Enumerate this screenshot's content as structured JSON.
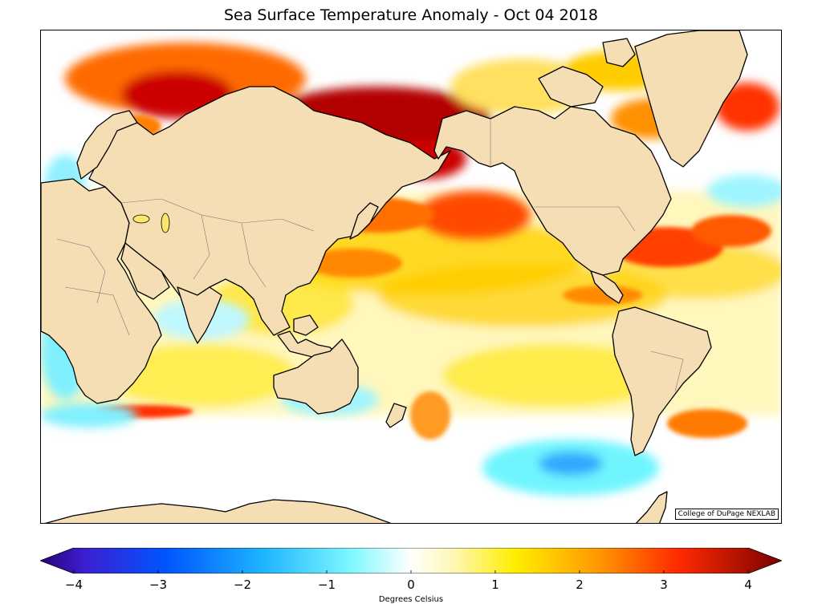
{
  "title": "Sea Surface Temperature Anomaly - Oct 04 2018",
  "credit": "College of DuPage NEXLAB",
  "colorbar": {
    "unit": "Degrees Celsius",
    "min": -4,
    "max": 4,
    "ticks": [
      "−4",
      "−3",
      "−2",
      "−1",
      "0",
      "1",
      "2",
      "3",
      "4"
    ]
  },
  "colors": {
    "land": "#f5deb3",
    "cold_deep": "#3b00a0",
    "cold": "#0066ff",
    "cool": "#6ff5ff",
    "neutral": "#ffffff",
    "warm": "#ffe600",
    "hot": "#ff7a00",
    "very_hot": "#8b0000"
  }
}
